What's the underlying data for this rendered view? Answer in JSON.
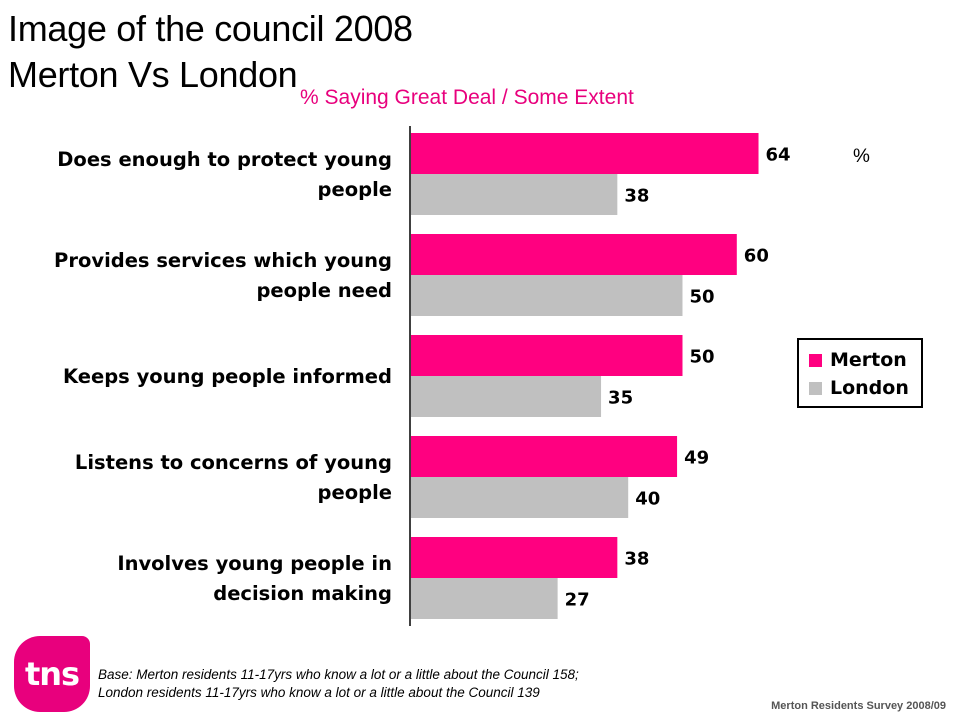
{
  "header": {
    "title_line1": "Image of the council 2008",
    "title_line2": "Merton Vs London",
    "subtitle": "% Saying Great Deal / Some Extent"
  },
  "chart_data": {
    "type": "bar",
    "orientation": "horizontal",
    "categories": [
      [
        "Does enough to protect young",
        "people"
      ],
      [
        "Provides services which young",
        "people need"
      ],
      [
        "Keeps young people informed"
      ],
      [
        "Listens to concerns of young",
        "people"
      ],
      [
        "Involves young people in",
        "decision making"
      ]
    ],
    "series": [
      {
        "name": "Merton",
        "color": "#ff0080",
        "values": [
          64,
          60,
          50,
          49,
          38
        ]
      },
      {
        "name": "London",
        "color": "#c0c0c0",
        "values": [
          38,
          50,
          35,
          40,
          27
        ]
      }
    ],
    "unit_label": "%",
    "xlim": [
      0,
      100
    ],
    "grid": false,
    "legend_position": "right"
  },
  "legend": {
    "merton": "Merton",
    "london": "London"
  },
  "logo": {
    "text": "tns"
  },
  "base_note": {
    "line1": "Base:  Merton residents 11-17yrs who know a lot or a little about the Council 158;",
    "line2": "London residents 11-17yrs who know a lot or a little about the Council 139"
  },
  "footer": "Merton Residents Survey 2008/09"
}
